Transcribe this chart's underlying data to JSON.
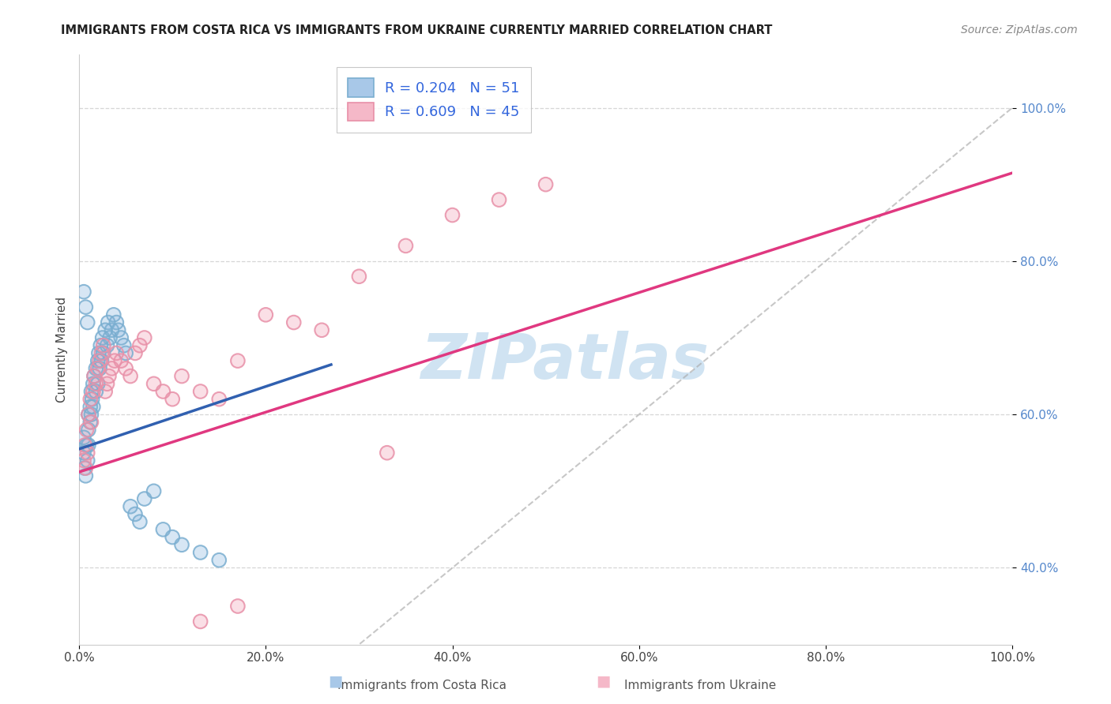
{
  "title": "IMMIGRANTS FROM COSTA RICA VS IMMIGRANTS FROM UKRAINE CURRENTLY MARRIED CORRELATION CHART",
  "source": "Source: ZipAtlas.com",
  "ylabel": "Currently Married",
  "xlim": [
    0.0,
    1.0
  ],
  "ylim": [
    0.3,
    1.07
  ],
  "x_tick_vals": [
    0.0,
    0.2,
    0.4,
    0.6,
    0.8,
    1.0
  ],
  "x_tick_labels": [
    "0.0%",
    "20.0%",
    "40.0%",
    "60.0%",
    "80.0%",
    "100.0%"
  ],
  "y_tick_vals": [
    0.4,
    0.6,
    0.8,
    1.0
  ],
  "y_tick_labels": [
    "40.0%",
    "60.0%",
    "80.0%",
    "100.0%"
  ],
  "color_blue_fill": "#a8c8e8",
  "color_blue_edge": "#7aaed0",
  "color_pink_fill": "#f5b8c8",
  "color_pink_edge": "#e890a8",
  "color_line_blue": "#3060b0",
  "color_line_pink": "#e03880",
  "color_diagonal": "#aaaaaa",
  "color_ytick": "#5588cc",
  "grid_color": "#cccccc",
  "background_color": "#ffffff",
  "watermark_color": "#c8dff0",
  "blue_x": [
    0.005,
    0.005,
    0.006,
    0.007,
    0.008,
    0.009,
    0.01,
    0.01,
    0.01,
    0.012,
    0.012,
    0.013,
    0.013,
    0.014,
    0.015,
    0.015,
    0.016,
    0.018,
    0.018,
    0.02,
    0.02,
    0.021,
    0.022,
    0.023,
    0.024,
    0.025,
    0.026,
    0.028,
    0.03,
    0.031,
    0.033,
    0.035,
    0.037,
    0.04,
    0.042,
    0.045,
    0.048,
    0.05,
    0.055,
    0.06,
    0.065,
    0.07,
    0.08,
    0.09,
    0.1,
    0.11,
    0.13,
    0.15,
    0.005,
    0.007,
    0.009
  ],
  "blue_y": [
    0.55,
    0.57,
    0.53,
    0.52,
    0.56,
    0.54,
    0.58,
    0.6,
    0.56,
    0.61,
    0.59,
    0.63,
    0.6,
    0.62,
    0.64,
    0.61,
    0.65,
    0.66,
    0.63,
    0.67,
    0.64,
    0.68,
    0.66,
    0.69,
    0.67,
    0.7,
    0.68,
    0.71,
    0.69,
    0.72,
    0.7,
    0.71,
    0.73,
    0.72,
    0.71,
    0.7,
    0.69,
    0.68,
    0.48,
    0.47,
    0.46,
    0.49,
    0.5,
    0.45,
    0.44,
    0.43,
    0.42,
    0.41,
    0.76,
    0.74,
    0.72
  ],
  "pink_x": [
    0.005,
    0.006,
    0.007,
    0.008,
    0.009,
    0.01,
    0.012,
    0.013,
    0.015,
    0.016,
    0.018,
    0.02,
    0.022,
    0.024,
    0.026,
    0.028,
    0.03,
    0.032,
    0.035,
    0.038,
    0.04,
    0.045,
    0.05,
    0.055,
    0.06,
    0.065,
    0.07,
    0.08,
    0.09,
    0.1,
    0.11,
    0.13,
    0.15,
    0.17,
    0.2,
    0.23,
    0.26,
    0.3,
    0.35,
    0.4,
    0.45,
    0.5,
    0.13,
    0.17,
    0.33
  ],
  "pink_y": [
    0.54,
    0.56,
    0.53,
    0.58,
    0.55,
    0.6,
    0.62,
    0.59,
    0.63,
    0.65,
    0.64,
    0.66,
    0.67,
    0.68,
    0.69,
    0.63,
    0.64,
    0.65,
    0.66,
    0.67,
    0.68,
    0.67,
    0.66,
    0.65,
    0.68,
    0.69,
    0.7,
    0.64,
    0.63,
    0.62,
    0.65,
    0.63,
    0.62,
    0.67,
    0.73,
    0.72,
    0.71,
    0.78,
    0.82,
    0.86,
    0.88,
    0.9,
    0.33,
    0.35,
    0.55
  ],
  "blue_line_x0": 0.0,
  "blue_line_x1": 0.27,
  "blue_line_y0": 0.555,
  "blue_line_y1": 0.665,
  "pink_line_x0": 0.0,
  "pink_line_x1": 1.0,
  "pink_line_y0": 0.525,
  "pink_line_y1": 0.915
}
